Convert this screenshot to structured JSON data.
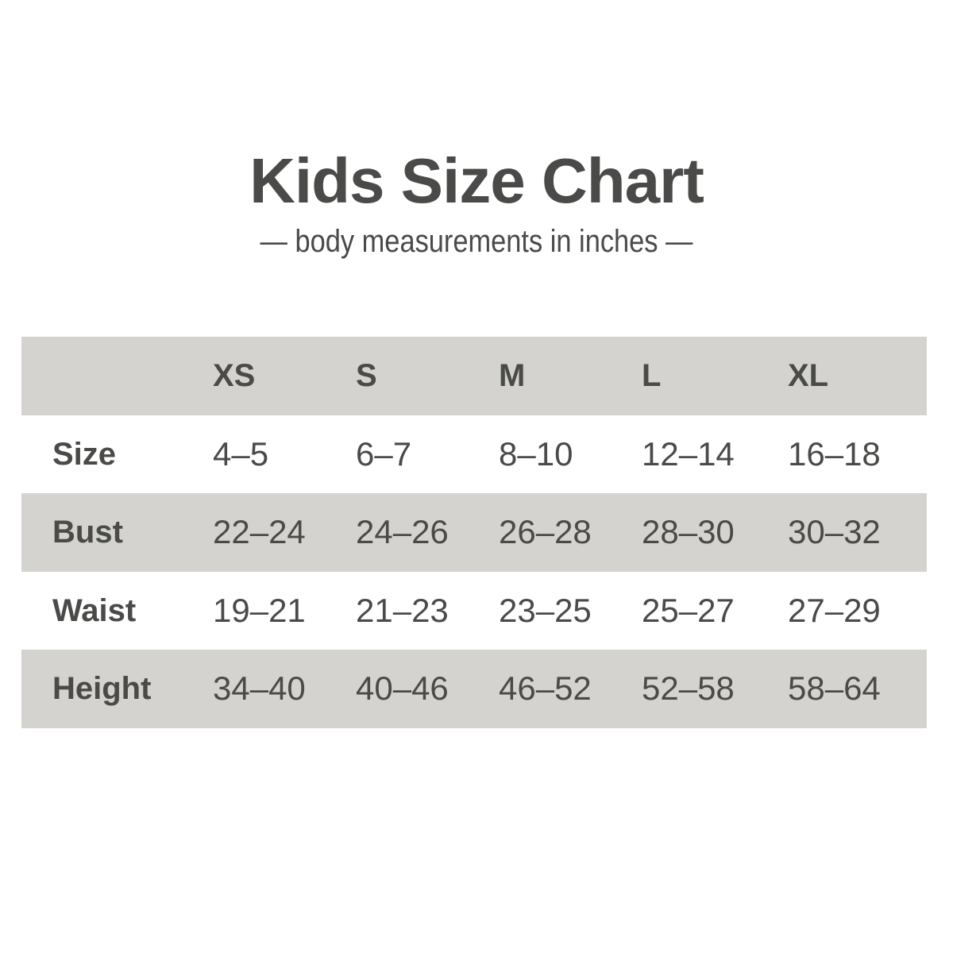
{
  "title": "Kids Size Chart",
  "subtitle": "— body measurements in inches —",
  "colors": {
    "band": "#d4d3cf",
    "text": "#4a4a48",
    "background": "#ffffff"
  },
  "chart_data": {
    "type": "table",
    "title": "Kids Size Chart",
    "subtitle": "— body measurements in inches —",
    "columns": [
      "",
      "XS",
      "S",
      "M",
      "L",
      "XL"
    ],
    "rows": [
      {
        "label": "Size",
        "values": [
          "4–5",
          "6–7",
          "8–10",
          "12–14",
          "16–18"
        ]
      },
      {
        "label": "Bust",
        "values": [
          "22–24",
          "24–26",
          "26–28",
          "28–30",
          "30–32"
        ]
      },
      {
        "label": "Waist",
        "values": [
          "19–21",
          "21–23",
          "23–25",
          "25–27",
          "27–29"
        ]
      },
      {
        "label": "Height",
        "values": [
          "34–40",
          "40–46",
          "46–52",
          "52–58",
          "58–64"
        ]
      }
    ]
  }
}
